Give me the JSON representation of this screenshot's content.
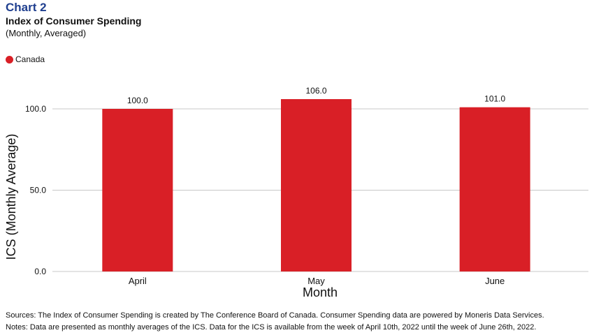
{
  "header": {
    "chart_label": "Chart 2",
    "title": "Index of Consumer Spending",
    "subtitle": "(Monthly, Averaged)"
  },
  "footer": {
    "sources": "Sources: The Index of Consumer Spending is created by The Conference Board of Canada. Consumer Spending data are powered by Moneris Data Services.",
    "notes": "Notes: Data are presented as monthly averages of the ICS. Data for the ICS is available from the week of April 10th, 2022 until the week of June 26th, 2022."
  },
  "colors": {
    "bar": "#d91f26",
    "label_blue": "#1f3f8f",
    "grid": "#c8c8c8"
  },
  "chart_data": {
    "type": "bar",
    "categories": [
      "April",
      "May",
      "June"
    ],
    "series": [
      {
        "name": "Canada",
        "values": [
          100.0,
          106.0,
          101.0
        ],
        "color": "#d91f26"
      }
    ],
    "data_labels": [
      "100.0",
      "106.0",
      "101.0"
    ],
    "xlabel": "Month",
    "ylabel": "ICS (Monthly Average)",
    "ylim": [
      0,
      100
    ],
    "yticks": [
      0,
      50,
      100
    ],
    "ytick_labels": [
      "0.0",
      "50.0",
      "100.0"
    ],
    "grid": true,
    "legend": "top-left"
  }
}
